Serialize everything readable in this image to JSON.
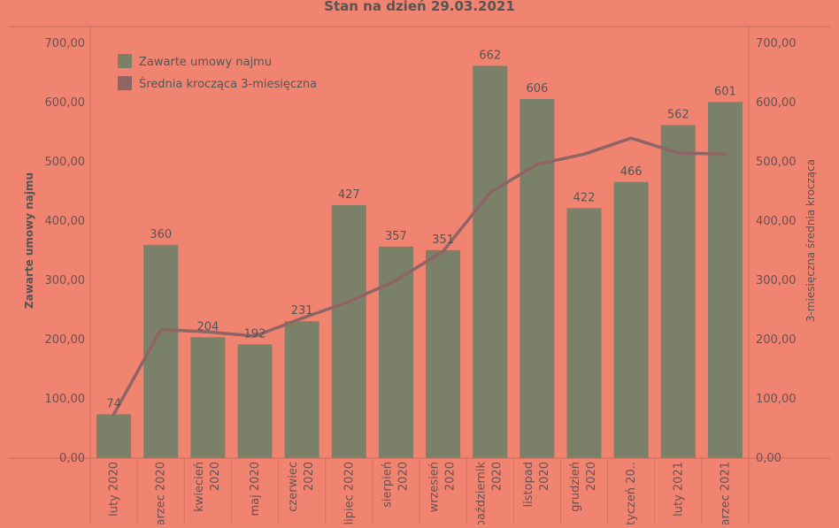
{
  "chart_data": {
    "type": "bar",
    "title": "Stan na dzień 29.03.2021",
    "ylabel": "Zawarte umowy najmu",
    "y2label": "3-miesięczna średnia krocząca",
    "ylim": [
      0,
      700
    ],
    "y2lim": [
      0,
      700
    ],
    "yticks": [
      "0,00",
      "100,00",
      "200,00",
      "300,00",
      "400,00",
      "500,00",
      "600,00",
      "700,00"
    ],
    "categories": [
      [
        "luty 2020"
      ],
      [
        "marzec 2020"
      ],
      [
        "kwiecień",
        "2020"
      ],
      [
        "maj 2020"
      ],
      [
        "czerwiec",
        "2020"
      ],
      [
        "lipiec 2020"
      ],
      [
        "sierpień",
        "2020"
      ],
      [
        "wrzesień",
        "2020"
      ],
      [
        "październik",
        "2020"
      ],
      [
        "listopad",
        "2020"
      ],
      [
        "grudzień",
        "2020"
      ],
      [
        "styczeń 20.."
      ],
      [
        "luty 2021"
      ],
      [
        "marzec 2021"
      ]
    ],
    "legend_position": "top-left",
    "series": [
      {
        "name": "Zawarte umowy najmu",
        "kind": "bar",
        "color": "#7b8068",
        "values": [
          74,
          360,
          204,
          192,
          231,
          427,
          357,
          351,
          662,
          606,
          422,
          466,
          562,
          601
        ],
        "labels": [
          "74",
          "360",
          "204",
          "192",
          "231",
          "427",
          "357",
          "351",
          "662",
          "606",
          "422",
          "466",
          "562",
          "601"
        ]
      },
      {
        "name": "Średnia krocząca 3-miesięczna",
        "kind": "line",
        "color": "#8f6464",
        "values": [
          74,
          217,
          213,
          206,
          236,
          264,
          300,
          349,
          448,
          496,
          513,
          540,
          515,
          513
        ]
      }
    ]
  }
}
